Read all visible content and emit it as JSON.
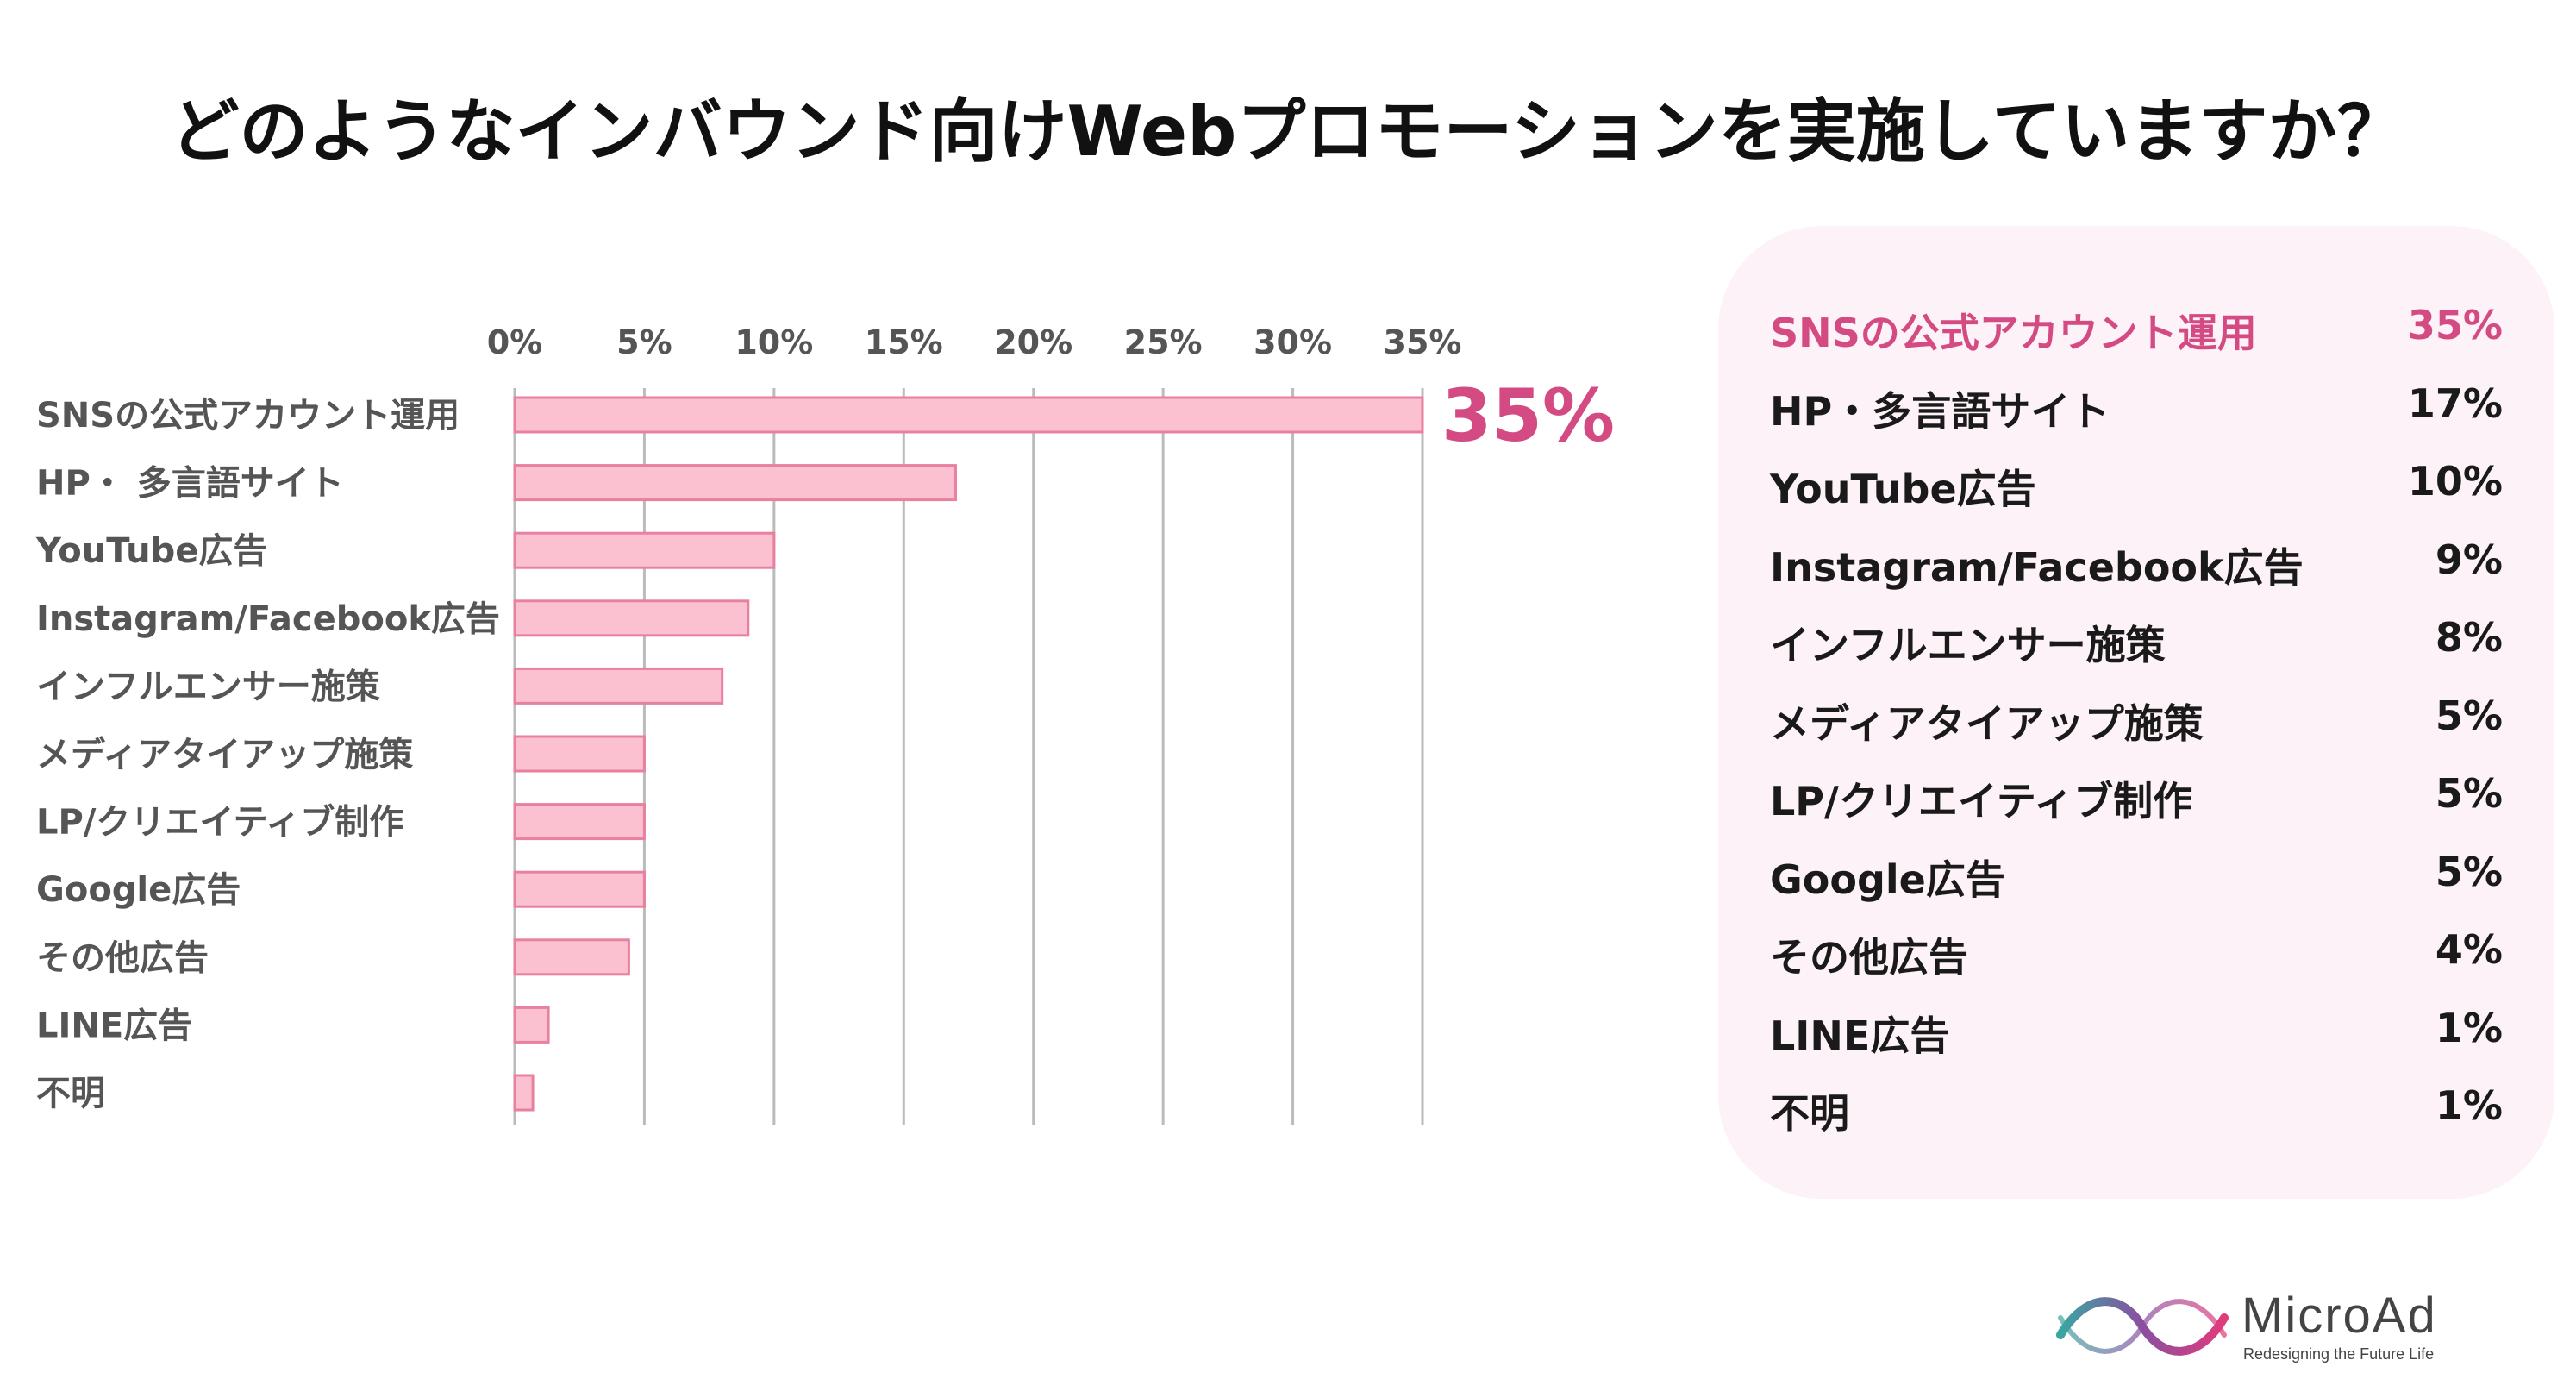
{
  "title": "どのようなインバウンド向けWebプロモーションを実施していますか？",
  "colors": {
    "bar_fill": "#fbc1d1",
    "bar_stroke": "#e8809f",
    "accent": "#d44a83",
    "grid": "#bbbbbb",
    "panel_bg": "#fdf2f7"
  },
  "chart_data": {
    "type": "bar",
    "orientation": "horizontal",
    "title": "どのようなインバウンド向けWebプロモーションを実施していますか？",
    "xlabel": "",
    "ylabel": "",
    "x_ticks": [
      "0%",
      "5%",
      "10%",
      "15%",
      "20%",
      "25%",
      "30%",
      "35%"
    ],
    "xlim": [
      0,
      35
    ],
    "grid": true,
    "categories": [
      "SNSの公式アカウント運用",
      "HP・ 多言語サイト",
      "YouTube広告",
      "Instagram/Facebook広告",
      "インフルエンサー施策",
      "メディアタイアップ施策",
      "LP/クリエイティブ制作",
      "Google広告",
      "その他広告",
      "LINE広告",
      "不明"
    ],
    "values": [
      35,
      17,
      10,
      9,
      8,
      5,
      5,
      5,
      4.4,
      1.3,
      0.7
    ],
    "highlight_label": "35%"
  },
  "summary": {
    "rows": [
      {
        "label": "SNSの公式アカウント運用",
        "value": "35%"
      },
      {
        "label": "HP・多言語サイト",
        "value": "17%"
      },
      {
        "label": "YouTube広告",
        "value": "10%"
      },
      {
        "label": "Instagram/Facebook広告",
        "value": "9%"
      },
      {
        "label": "インフルエンサー施策",
        "value": "8%"
      },
      {
        "label": "メディアタイアップ施策",
        "value": "5%"
      },
      {
        "label": "LP/クリエイティブ制作",
        "value": "5%"
      },
      {
        "label": "Google広告",
        "value": "5%"
      },
      {
        "label": "その他広告",
        "value": "4%"
      },
      {
        "label": "LINE広告",
        "value": "1%"
      },
      {
        "label": "不明",
        "value": "1%"
      }
    ]
  },
  "logo": {
    "name": "MicroAd",
    "tagline": "Redesigning the Future Life"
  }
}
